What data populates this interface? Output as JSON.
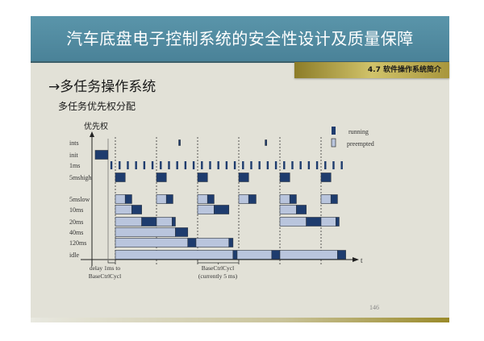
{
  "header": {
    "title": "汽车底盘电子控制系统的安全性设计及质量保障"
  },
  "section_tab": "4.7 软件操作系统简介",
  "heading": "→多任务操作系统",
  "subheading": "多任务优先权分配",
  "page_number": "146",
  "colors": {
    "running": "#1e3c6e",
    "preempted": "#b9c5dd",
    "header": "#5a95aa",
    "slide_bg": "#e2e1d7"
  },
  "diagram": {
    "y_axis_label": "优先权",
    "x_axis_label": "t",
    "legend": {
      "running": "running",
      "preempted": "preempted"
    },
    "annotations": {
      "delay_line1": "delay 1ms to",
      "delay_line2": "BaseCtrlCycl",
      "cycle_line1": "BaseCtrlCycl",
      "cycle_line2": "(currently 5 ms)"
    },
    "cycle_boundaries_ms": [
      0,
      5,
      10,
      15,
      20,
      25
    ],
    "rows": [
      {
        "label": "ints",
        "segments": [
          [
            7.7,
            7.9,
            "r"
          ],
          [
            18.2,
            18.4,
            "r"
          ]
        ]
      },
      {
        "label": "init",
        "segments": [
          [
            -2.45,
            -0.9,
            "r"
          ]
        ]
      },
      {
        "label": "1ms",
        "segments": "ticks"
      },
      {
        "label": "5mshigh",
        "segments": [
          [
            0,
            1.2,
            "r"
          ],
          [
            5,
            6.2,
            "r"
          ],
          [
            10,
            11.2,
            "r"
          ],
          [
            15,
            16.2,
            "r"
          ],
          [
            20,
            21.2,
            "r"
          ],
          [
            25,
            26.2,
            "r"
          ]
        ]
      },
      {
        "label": "5mslow",
        "segments": [
          [
            0,
            1.2,
            "p"
          ],
          [
            1.2,
            2,
            "r"
          ],
          [
            5,
            6.2,
            "p"
          ],
          [
            6.2,
            7,
            "r"
          ],
          [
            10,
            11.2,
            "p"
          ],
          [
            11.2,
            12,
            "r"
          ],
          [
            15,
            16.2,
            "p"
          ],
          [
            16.2,
            17.1,
            "r"
          ],
          [
            20,
            21.2,
            "p"
          ],
          [
            21.2,
            22.0,
            "r"
          ],
          [
            25,
            26.2,
            "p"
          ],
          [
            26.2,
            27,
            "r"
          ]
        ]
      },
      {
        "label": "10ms",
        "segments": [
          [
            0,
            2,
            "p"
          ],
          [
            2,
            3.2,
            "r"
          ],
          [
            10,
            12,
            "p"
          ],
          [
            12,
            13.8,
            "r"
          ],
          [
            20,
            22,
            "p"
          ],
          [
            22,
            23.2,
            "r"
          ]
        ]
      },
      {
        "label": "20ms",
        "segments": [
          [
            0,
            3.2,
            "p"
          ],
          [
            3.2,
            5,
            "r"
          ],
          [
            5,
            6.9,
            "p"
          ],
          [
            6.9,
            7.3,
            "r"
          ],
          [
            20,
            23.2,
            "p"
          ],
          [
            23.2,
            25,
            "r"
          ],
          [
            25,
            26.8,
            "p"
          ],
          [
            26.8,
            27.2,
            "r"
          ]
        ]
      },
      {
        "label": "40ms",
        "segments": [
          [
            0,
            7.3,
            "p"
          ],
          [
            7.3,
            8.8,
            "r"
          ]
        ]
      },
      {
        "label": "120ms",
        "segments": [
          [
            0,
            8.8,
            "p"
          ],
          [
            8.8,
            9.8,
            "r"
          ],
          [
            9.8,
            13.8,
            "p"
          ],
          [
            13.8,
            14.3,
            "r"
          ]
        ]
      },
      {
        "label": "idle",
        "segments": [
          [
            0,
            14.3,
            "p"
          ],
          [
            14.3,
            14.8,
            "r"
          ],
          [
            14.8,
            19,
            "p"
          ],
          [
            19,
            20,
            "r"
          ],
          [
            20,
            27,
            "p"
          ],
          [
            27,
            28,
            "r"
          ]
        ]
      }
    ]
  }
}
